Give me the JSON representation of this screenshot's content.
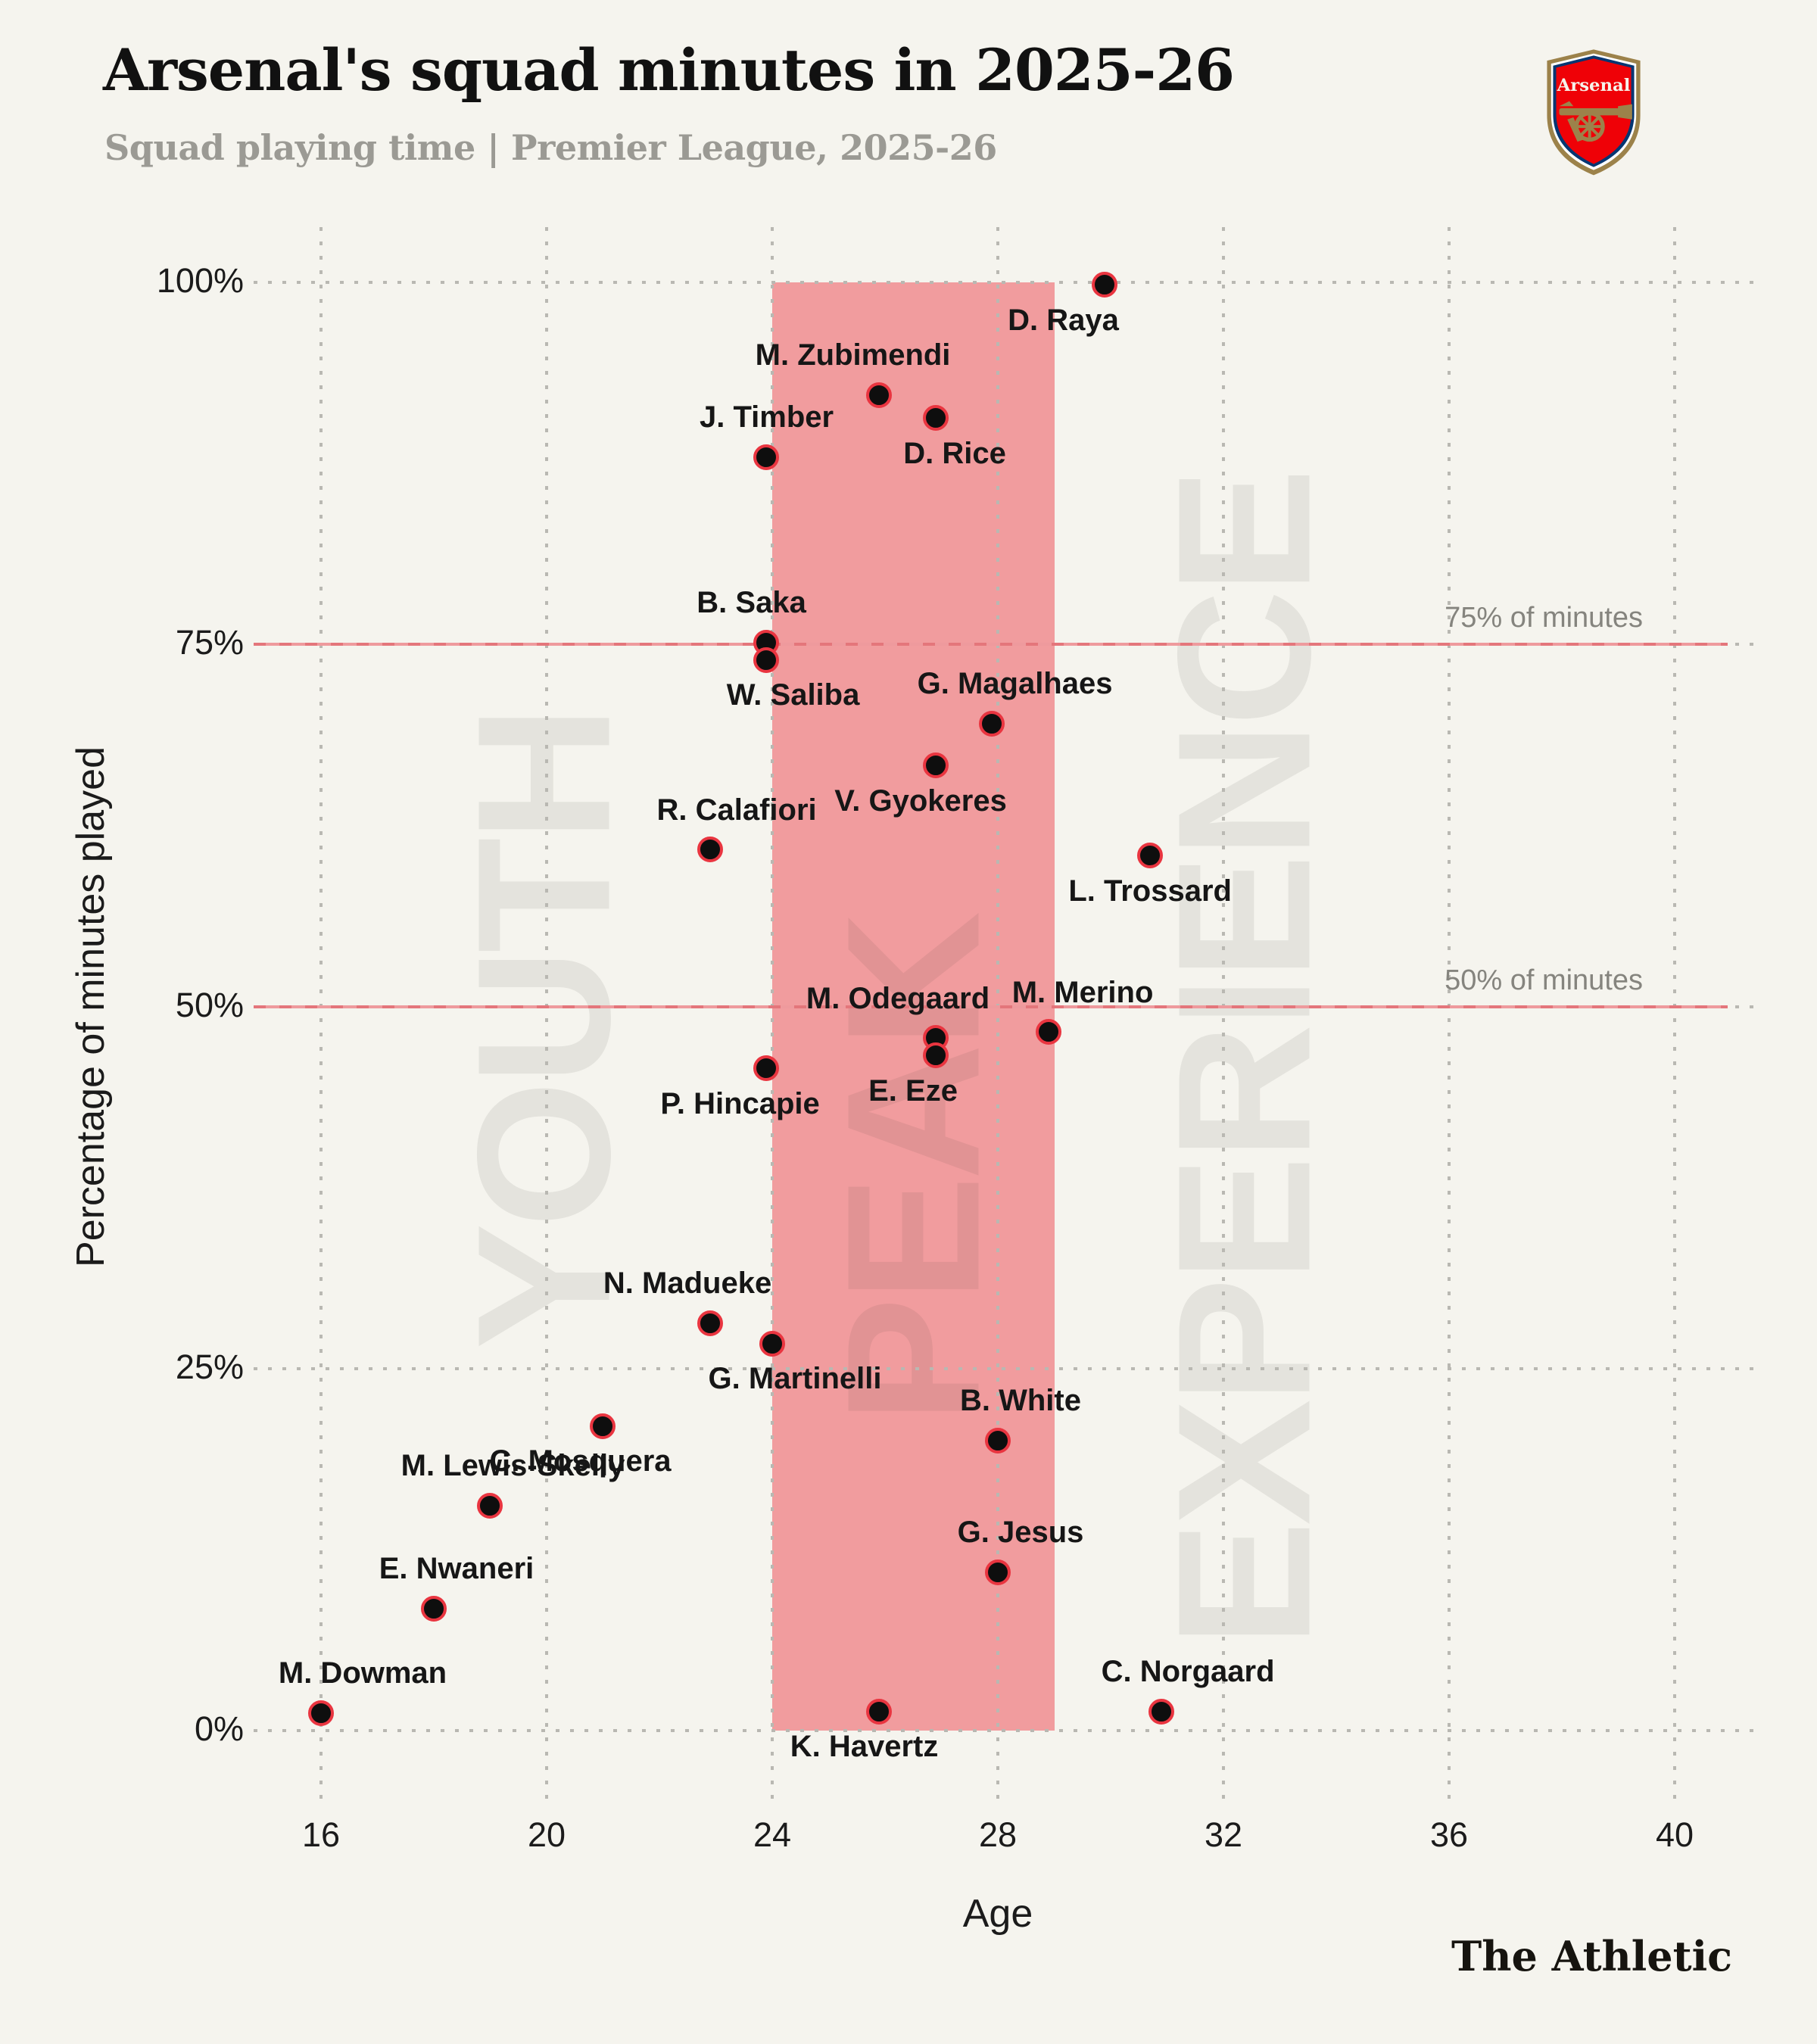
{
  "header": {
    "title": "Arsenal's squad minutes in 2025-26",
    "subtitle": "Squad playing time | Premier League, 2025-26"
  },
  "branding": {
    "crest_text": "Arsenal",
    "footer_wordmark": "The Athletic"
  },
  "colors": {
    "background": "#f5f4ee",
    "peak_band": "#f19c9e",
    "reference_line": "#e4767b",
    "dot_fill": "#0e0e0e",
    "dot_ring": "#e93540",
    "gridline": "#b9b8b2",
    "crest_red": "#ef0107",
    "crest_gold": "#9c824a",
    "crest_blue": "#063672"
  },
  "chart_data": {
    "type": "scatter",
    "title": "Arsenal's squad minutes in 2025-26",
    "xlabel": "Age",
    "ylabel": "Percentage of minutes played",
    "xlim": [
      14.6,
      41.5
    ],
    "ylim": [
      0,
      100
    ],
    "grid": "dotted",
    "x_ticks": [
      {
        "label": "16",
        "value": 16
      },
      {
        "label": "20",
        "value": 20
      },
      {
        "label": "24",
        "value": 24
      },
      {
        "label": "28",
        "value": 28
      },
      {
        "label": "32",
        "value": 32
      },
      {
        "label": "36",
        "value": 36
      },
      {
        "label": "40",
        "value": 40
      }
    ],
    "y_ticks": [
      {
        "label": "0%",
        "value": 0
      },
      {
        "label": "25%",
        "value": 25
      },
      {
        "label": "50%",
        "value": 50
      },
      {
        "label": "75%",
        "value": 75
      },
      {
        "label": "100%",
        "value": 100
      }
    ],
    "peak_band": {
      "age_from": 24,
      "age_to": 29
    },
    "zone_watermarks": [
      {
        "label": "YOUTH"
      },
      {
        "label": "PEAK"
      },
      {
        "label": "EXPERIENCE"
      }
    ],
    "reference_lines": [
      {
        "value": 75,
        "label": "75% of minutes"
      },
      {
        "value": 50,
        "label": "50% of minutes"
      }
    ],
    "points": [
      {
        "name": "D. Raya",
        "age": 29.9,
        "pct": 99.8,
        "label_side": "below",
        "label_dx": -55
      },
      {
        "name": "M. Zubimendi",
        "age": 25.9,
        "pct": 92.2,
        "label_side": "above",
        "label_dx": -35
      },
      {
        "name": "D. Rice",
        "age": 26.9,
        "pct": 90.6,
        "label_side": "below",
        "label_dx": 25
      },
      {
        "name": "J. Timber",
        "age": 23.9,
        "pct": 87.9,
        "label_side": "above",
        "label_dx": 0
      },
      {
        "name": "B. Saka",
        "age": 23.9,
        "pct": 75.1,
        "label_side": "above",
        "label_dx": -20
      },
      {
        "name": "W. Saliba",
        "age": 23.9,
        "pct": 73.9,
        "label_side": "below",
        "label_dx": 35
      },
      {
        "name": "G. Magalhaes",
        "age": 27.9,
        "pct": 69.5,
        "label_side": "above",
        "label_dx": 30
      },
      {
        "name": "V. Gyokeres",
        "age": 26.9,
        "pct": 66.6,
        "label_side": "below",
        "label_dx": -20
      },
      {
        "name": "R. Calafiori",
        "age": 22.9,
        "pct": 60.8,
        "label_side": "above",
        "label_dx": 35
      },
      {
        "name": "L. Trossard",
        "age": 30.7,
        "pct": 60.4,
        "label_side": "below",
        "label_dx": 0
      },
      {
        "name": "M. Merino",
        "age": 28.9,
        "pct": 48.2,
        "label_side": "above",
        "label_dx": 45
      },
      {
        "name": "M. Odegaard",
        "age": 26.9,
        "pct": 47.8,
        "label_side": "above",
        "label_dx": -50
      },
      {
        "name": "E. Eze",
        "age": 26.9,
        "pct": 46.6,
        "label_side": "below",
        "label_dx": -30
      },
      {
        "name": "P. Hincapie",
        "age": 23.9,
        "pct": 45.7,
        "label_side": "below",
        "label_dx": -35
      },
      {
        "name": "N. Madueke",
        "age": 22.9,
        "pct": 28.1,
        "label_side": "above",
        "label_dx": -30
      },
      {
        "name": "G. Martinelli",
        "age": 24.0,
        "pct": 26.7,
        "label_side": "below",
        "label_dx": 30
      },
      {
        "name": "C. Mosquera",
        "age": 21.0,
        "pct": 21.0,
        "label_side": "below",
        "label_dx": -30
      },
      {
        "name": "B. White",
        "age": 28.0,
        "pct": 20.0,
        "label_side": "above",
        "label_dx": 30
      },
      {
        "name": "M. Lewis-Skelly",
        "age": 19.0,
        "pct": 15.5,
        "label_side": "above",
        "label_dx": 30
      },
      {
        "name": "G. Jesus",
        "age": 28.0,
        "pct": 10.9,
        "label_side": "above",
        "label_dx": 30
      },
      {
        "name": "E. Nwaneri",
        "age": 18.0,
        "pct": 8.4,
        "label_side": "above",
        "label_dx": 30
      },
      {
        "name": "M. Dowman",
        "age": 16.0,
        "pct": 1.2,
        "label_side": "above",
        "label_dx": 55
      },
      {
        "name": "K. Havertz",
        "age": 25.9,
        "pct": 1.3,
        "label_side": "below",
        "label_dx": -20
      },
      {
        "name": "C. Norgaard",
        "age": 30.9,
        "pct": 1.3,
        "label_side": "above",
        "label_dx": 35
      }
    ]
  }
}
